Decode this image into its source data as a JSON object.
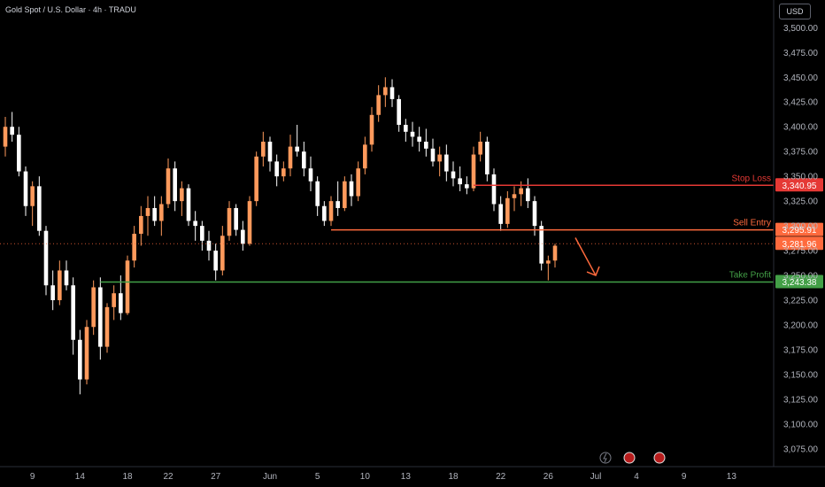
{
  "chart_title": "Gold Spot / U.S. Dollar · 4h · TRADU",
  "currency_button": "USD",
  "colors": {
    "background": "#000000",
    "up": "#ff9a5c",
    "down": "#ffffff",
    "stop": "#e53935",
    "entry": "#ff6a3d",
    "profit": "#43a047",
    "current": "#ff6a3d"
  },
  "chart_data": {
    "type": "candlestick",
    "title": "Gold Spot / U.S. Dollar · 4h · TRADU",
    "ylim": [
      3057,
      3528
    ],
    "y_ticks": [
      3075,
      3100,
      3125,
      3150,
      3175,
      3200,
      3225,
      3250,
      3275,
      3300,
      3325,
      3350,
      3375,
      3400,
      3425,
      3450,
      3475,
      3500
    ],
    "x_ticks": [
      {
        "label": "9",
        "i": 4
      },
      {
        "label": "14",
        "i": 11
      },
      {
        "label": "18",
        "i": 18
      },
      {
        "label": "22",
        "i": 24
      },
      {
        "label": "27",
        "i": 31
      },
      {
        "label": "Jun",
        "i": 39
      },
      {
        "label": "5",
        "i": 46
      },
      {
        "label": "10",
        "i": 53
      },
      {
        "label": "13",
        "i": 59
      },
      {
        "label": "18",
        "i": 66
      },
      {
        "label": "22",
        "i": 73
      },
      {
        "label": "26",
        "i": 80
      },
      {
        "label": "Jul",
        "i": 87
      },
      {
        "label": "4",
        "i": 93
      },
      {
        "label": "9",
        "i": 100
      },
      {
        "label": "13",
        "i": 107
      }
    ],
    "x_slots": 114,
    "candles": [
      [
        3380,
        3410,
        3370,
        3400
      ],
      [
        3400,
        3415,
        3385,
        3392
      ],
      [
        3392,
        3400,
        3350,
        3355
      ],
      [
        3355,
        3360,
        3310,
        3320
      ],
      [
        3320,
        3345,
        3300,
        3340
      ],
      [
        3340,
        3350,
        3290,
        3295
      ],
      [
        3295,
        3300,
        3230,
        3240
      ],
      [
        3240,
        3255,
        3215,
        3225
      ],
      [
        3225,
        3265,
        3220,
        3255
      ],
      [
        3255,
        3265,
        3235,
        3240
      ],
      [
        3240,
        3248,
        3170,
        3185
      ],
      [
        3185,
        3195,
        3130,
        3145
      ],
      [
        3145,
        3205,
        3140,
        3198
      ],
      [
        3198,
        3245,
        3190,
        3238
      ],
      [
        3238,
        3248,
        3165,
        3178
      ],
      [
        3178,
        3222,
        3172,
        3218
      ],
      [
        3218,
        3240,
        3205,
        3232
      ],
      [
        3232,
        3250,
        3205,
        3212
      ],
      [
        3212,
        3270,
        3210,
        3265
      ],
      [
        3265,
        3300,
        3258,
        3292
      ],
      [
        3292,
        3320,
        3280,
        3310
      ],
      [
        3310,
        3330,
        3290,
        3318
      ],
      [
        3318,
        3330,
        3300,
        3305
      ],
      [
        3305,
        3330,
        3290,
        3322
      ],
      [
        3322,
        3368,
        3318,
        3358
      ],
      [
        3358,
        3365,
        3315,
        3325
      ],
      [
        3325,
        3345,
        3310,
        3338
      ],
      [
        3338,
        3342,
        3300,
        3305
      ],
      [
        3305,
        3315,
        3285,
        3300
      ],
      [
        3300,
        3305,
        3275,
        3285
      ],
      [
        3285,
        3295,
        3265,
        3275
      ],
      [
        3275,
        3282,
        3245,
        3255
      ],
      [
        3255,
        3300,
        3250,
        3290
      ],
      [
        3290,
        3325,
        3285,
        3318
      ],
      [
        3318,
        3322,
        3290,
        3296
      ],
      [
        3296,
        3305,
        3275,
        3282
      ],
      [
        3282,
        3330,
        3280,
        3325
      ],
      [
        3325,
        3375,
        3320,
        3370
      ],
      [
        3370,
        3395,
        3360,
        3385
      ],
      [
        3385,
        3390,
        3355,
        3365
      ],
      [
        3365,
        3372,
        3340,
        3350
      ],
      [
        3350,
        3365,
        3345,
        3358
      ],
      [
        3358,
        3392,
        3350,
        3380
      ],
      [
        3380,
        3402,
        3370,
        3375
      ],
      [
        3375,
        3385,
        3350,
        3358
      ],
      [
        3358,
        3370,
        3335,
        3345
      ],
      [
        3345,
        3350,
        3310,
        3320
      ],
      [
        3320,
        3325,
        3300,
        3305
      ],
      [
        3305,
        3330,
        3300,
        3325
      ],
      [
        3325,
        3345,
        3310,
        3318
      ],
      [
        3318,
        3350,
        3315,
        3345
      ],
      [
        3345,
        3352,
        3320,
        3330
      ],
      [
        3330,
        3365,
        3325,
        3358
      ],
      [
        3358,
        3390,
        3352,
        3382
      ],
      [
        3382,
        3420,
        3375,
        3412
      ],
      [
        3412,
        3442,
        3405,
        3432
      ],
      [
        3432,
        3450,
        3420,
        3440
      ],
      [
        3440,
        3448,
        3420,
        3428
      ],
      [
        3428,
        3432,
        3395,
        3402
      ],
      [
        3402,
        3408,
        3385,
        3395
      ],
      [
        3395,
        3405,
        3380,
        3390
      ],
      [
        3390,
        3400,
        3375,
        3385
      ],
      [
        3385,
        3398,
        3370,
        3378
      ],
      [
        3378,
        3388,
        3360,
        3365
      ],
      [
        3365,
        3380,
        3350,
        3372
      ],
      [
        3372,
        3382,
        3345,
        3355
      ],
      [
        3355,
        3365,
        3340,
        3348
      ],
      [
        3348,
        3360,
        3335,
        3342
      ],
      [
        3342,
        3350,
        3332,
        3338
      ],
      [
        3338,
        3380,
        3335,
        3372
      ],
      [
        3372,
        3395,
        3365,
        3385
      ],
      [
        3385,
        3390,
        3345,
        3352
      ],
      [
        3352,
        3358,
        3315,
        3322
      ],
      [
        3322,
        3330,
        3295,
        3302
      ],
      [
        3302,
        3335,
        3298,
        3328
      ],
      [
        3328,
        3340,
        3315,
        3332
      ],
      [
        3332,
        3345,
        3320,
        3338
      ],
      [
        3338,
        3348,
        3318,
        3325
      ],
      [
        3325,
        3330,
        3290,
        3300
      ],
      [
        3300,
        3305,
        3255,
        3262
      ],
      [
        3262,
        3270,
        3245,
        3265
      ],
      [
        3265,
        3282,
        3258,
        3280
      ]
    ],
    "levels": [
      {
        "name": "Stop Loss",
        "value": 3340.95,
        "label": "3,340.95",
        "start_i": 69,
        "color": "#e53935"
      },
      {
        "name": "Sell Entry",
        "value": 3295.91,
        "label": "3,295.91",
        "start_i": 48,
        "color": "#ff6a3d"
      },
      {
        "name": "Take Profit",
        "value": 3243.38,
        "label": "3,243.38",
        "start_i": 14,
        "color": "#43a047"
      }
    ],
    "current_price": {
      "value": 3281.96,
      "label": "3,281.96"
    },
    "arrow": {
      "from": {
        "i": 84,
        "v": 3288
      },
      "to": {
        "i": 87,
        "v": 3250
      }
    }
  }
}
